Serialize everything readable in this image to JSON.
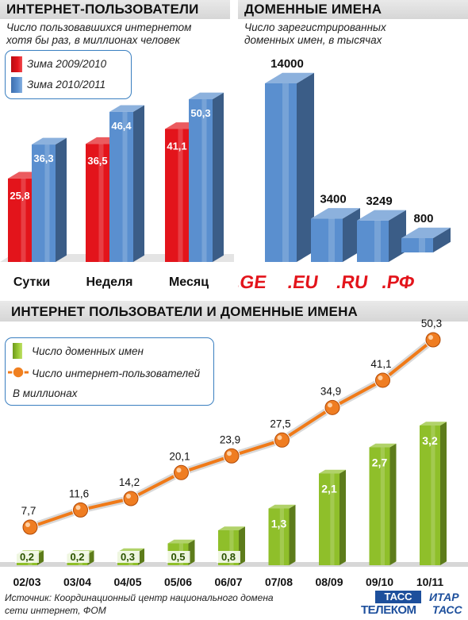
{
  "charts": {
    "users": {
      "title": "ИНТЕРНЕТ-ПОЛЬЗОВАТЕЛИ",
      "subtitle_line1": "Число пользовавшихся интернетом",
      "subtitle_line2": "хотя бы раз, в миллионах человек",
      "legend": [
        "Зима 2009/2010",
        "Зима 2010/2011"
      ]
    },
    "domains": {
      "title": "ДОМЕННЫЕ ИМЕНА",
      "subtitle_line1": "Число зарегистрированных",
      "subtitle_line2": "доменных имен, в тысячах"
    },
    "combined": {
      "title": "ИНТЕРНЕТ ПОЛЬЗОВАТЕЛИ И ДОМЕННЫЕ ИМЕНА",
      "legend_domains": "Число доменных имен",
      "legend_users": "Число интернет-пользователей",
      "legend_units": "В миллионах"
    }
  },
  "footer": {
    "source_line1": "Источник: Координационный центр национального домена",
    "source_line2": "сети интернет, ФОМ",
    "logo_tass_telecom_top": "ТАСС",
    "logo_tass_telecom_bottom": "ТЕЛЕКОМ",
    "logo_itar_top": "ИТАР",
    "logo_itar_bottom": "ТАСС"
  },
  "colors": {
    "red": "#e3141b",
    "blue": "#5a8fcf",
    "green": "#8fbf2a",
    "orange": "#f07a18",
    "label_bg": "#ffffff",
    "band": "#dcdcdc"
  },
  "chart_data": [
    {
      "type": "bar",
      "title": "ИНТЕРНЕТ-ПОЛЬЗОВАТЕЛИ",
      "categories": [
        "Сутки",
        "Неделя",
        "Месяц"
      ],
      "series": [
        {
          "name": "Зима 2009/2010",
          "values": [
            25.8,
            36.5,
            41.1
          ]
        },
        {
          "name": "Зима 2010/2011",
          "values": [
            36.3,
            46.4,
            50.3
          ]
        }
      ],
      "value_labels": [
        [
          "25,8",
          "36,5",
          "41,1"
        ],
        [
          "36,3",
          "46,4",
          "50,3"
        ]
      ],
      "ylim": [
        0,
        60
      ],
      "grid": false,
      "legend": "top-left"
    },
    {
      "type": "bar",
      "title": "ДОМЕННЫЕ ИМЕНА",
      "categories": [
        ".GE",
        ".EU",
        ".RU",
        ".РФ"
      ],
      "values": [
        14000,
        3400,
        3249,
        800
      ],
      "value_labels": [
        "14000",
        "3400",
        "3249",
        "800"
      ],
      "ylim": [
        0,
        16000
      ],
      "grid": false
    },
    {
      "type": "bar",
      "title": "ИНТЕРНЕТ ПОЛЬЗОВАТЕЛИ И ДОМЕННЫЕ ИМЕНА",
      "categories": [
        "02/03",
        "03/04",
        "04/05",
        "05/06",
        "06/07",
        "07/08",
        "08/09",
        "09/10",
        "10/11"
      ],
      "series": [
        {
          "name": "Число доменных имен",
          "type": "bar",
          "values": [
            0.2,
            0.2,
            0.3,
            0.5,
            0.8,
            1.3,
            2.1,
            2.7,
            3.2
          ],
          "labels": [
            "0,2",
            "0,2",
            "0,3",
            "0,5",
            "0,8",
            "1,3",
            "2,1",
            "2,7",
            "3,2"
          ]
        },
        {
          "name": "Число интернет-пользователей",
          "type": "line",
          "values": [
            7.7,
            11.6,
            14.2,
            20.1,
            23.9,
            27.5,
            34.9,
            41.1,
            50.3
          ],
          "labels": [
            "7,7",
            "11,6",
            "14,2",
            "20,1",
            "23,9",
            "27,5",
            "34,9",
            "41,1",
            "50,3"
          ]
        }
      ],
      "units": "В миллионах",
      "grid": false,
      "legend": "top-left"
    }
  ]
}
